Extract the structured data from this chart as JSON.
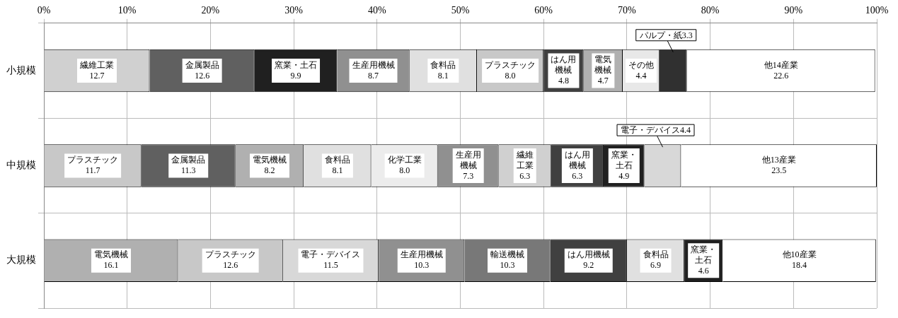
{
  "chart_data": {
    "type": "bar",
    "orientation": "horizontal",
    "stacked": true,
    "grid": true,
    "legend": false,
    "categories": [
      "小規模",
      "中規模",
      "大規模"
    ],
    "xlim": [
      0,
      100
    ],
    "xticks": [
      {
        "value": 0,
        "label": "0%"
      },
      {
        "value": 10,
        "label": "10%"
      },
      {
        "value": 20,
        "label": "20%"
      },
      {
        "value": 30,
        "label": "30%"
      },
      {
        "value": 40,
        "label": "40%"
      },
      {
        "value": 50,
        "label": "50%"
      },
      {
        "value": 60,
        "label": "60%"
      },
      {
        "value": 70,
        "label": "70%"
      },
      {
        "value": 80,
        "label": "80%"
      },
      {
        "value": 90,
        "label": "90%"
      },
      {
        "value": 100,
        "label": "100%"
      }
    ],
    "series": [
      {
        "colors": [
          "#d0d0d0",
          "#c8c8c8",
          "#b0b0b0"
        ],
        "values": [
          12.7,
          11.7,
          16.1
        ],
        "value_labels": [
          "繊維工業\n12.7",
          "プラスチック\n11.7",
          "電気機械\n16.1"
        ]
      },
      {
        "colors": [
          "#606060",
          "#606060",
          "#c8c8c8"
        ],
        "values": [
          12.6,
          11.3,
          12.6
        ],
        "value_labels": [
          "金属製品\n12.6",
          "金属製品\n11.3",
          "プラスチック\n12.6"
        ]
      },
      {
        "colors": [
          "#202020",
          "#b0b0b0",
          "#d8d8d8"
        ],
        "values": [
          9.9,
          8.2,
          11.5
        ],
        "value_labels": [
          "窯業・土石\n9.9",
          "電気機械\n8.2",
          "電子・デバイス\n11.5"
        ]
      },
      {
        "colors": [
          "#909090",
          "#e0e0e0",
          "#909090"
        ],
        "values": [
          8.7,
          8.1,
          10.3
        ],
        "value_labels": [
          "生産用機械\n8.7",
          "食料品\n8.1",
          "生産用機械\n10.3"
        ]
      },
      {
        "colors": [
          "#e0e0e0",
          "#ececec",
          "#787878"
        ],
        "values": [
          8.1,
          8.0,
          10.3
        ],
        "value_labels": [
          "食料品\n8.1",
          "化学工業\n8.0",
          "輸送機械\n10.3"
        ]
      },
      {
        "colors": [
          "#c8c8c8",
          "#909090",
          "#404040"
        ],
        "values": [
          8.0,
          7.3,
          9.2
        ],
        "value_labels": [
          "プラスチック\n8.0",
          "生産用機械\n7.3",
          "はん用機械\n9.2"
        ]
      },
      {
        "colors": [
          "#404040",
          "#d0d0d0",
          "#e0e0e0"
        ],
        "values": [
          4.8,
          6.3,
          6.9
        ],
        "value_labels": [
          "はん用機械\n4.8",
          "繊維工業\n6.3",
          "食料品\n6.9"
        ]
      },
      {
        "colors": [
          "#b0b0b0",
          "#404040",
          "#202020"
        ],
        "values": [
          4.7,
          6.3,
          4.6
        ],
        "value_labels": [
          "電気機械\n4.7",
          "はん用機械\n6.3",
          "窯業・土石\n4.6"
        ]
      },
      {
        "colors": [
          "#e8e8e8",
          "#202020",
          "#ffffff"
        ],
        "values": [
          4.4,
          4.9,
          18.4
        ],
        "value_labels": [
          "その他\n4.4",
          "窯業・土石\n4.9",
          "他10産業\n18.4"
        ]
      },
      {
        "colors": [
          "#303030",
          "#d8d8d8",
          "#ffffff"
        ],
        "values": [
          3.3,
          4.4,
          null
        ],
        "value_labels": [
          "パルプ・紙3.3",
          "電子・デバイス4.4",
          null
        ]
      },
      {
        "colors": [
          "#ffffff",
          "#ffffff",
          "#ffffff"
        ],
        "values": [
          22.6,
          23.5,
          null
        ],
        "value_labels": [
          "他14産業\n22.6",
          "他13産業\n23.5",
          null
        ]
      }
    ]
  }
}
